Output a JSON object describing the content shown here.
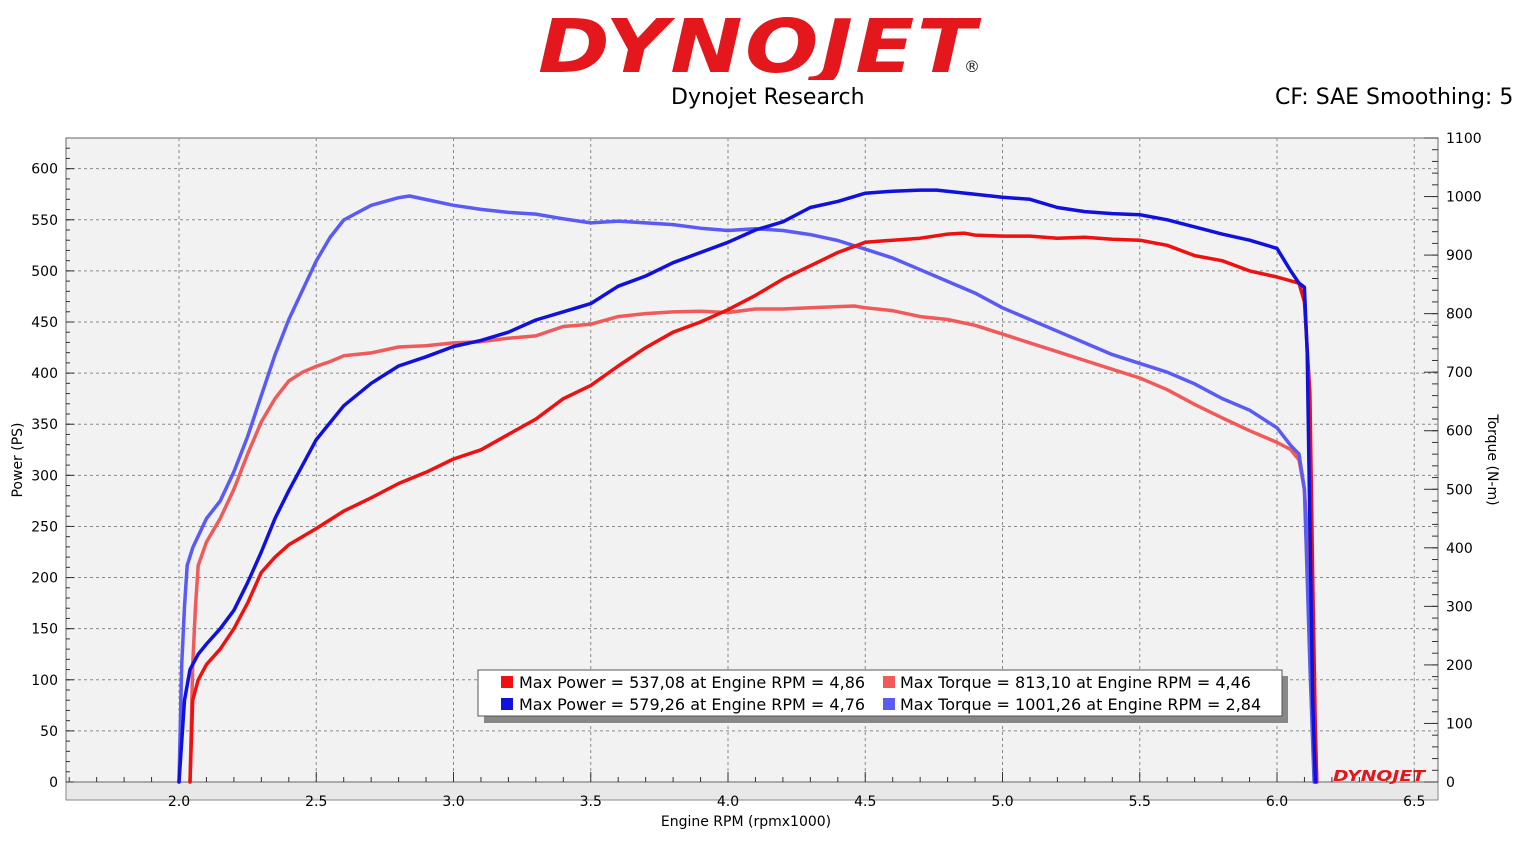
{
  "header": {
    "brand": "DYNOJET",
    "reg_mark": "®",
    "subtitle": "Dynojet Research",
    "settings": "CF: SAE Smoothing: 5"
  },
  "footer_logo": "DYNOJET",
  "colors": {
    "red": "#ee1111",
    "blue": "#1111dd",
    "light_red": "#f05a5a",
    "light_blue": "#5a5af5",
    "plot_bg": "#f0f0f0",
    "axis_bg": "#e8e8e8"
  },
  "chart_data": {
    "type": "line",
    "xlabel": "Engine RPM (rpmx1000)",
    "ylabel_left": "Power (PS)",
    "ylabel_right": "Torque (N-m)",
    "xlim": [
      1.6,
      6.6
    ],
    "ylim_left": [
      0,
      630
    ],
    "ylim_right": [
      0,
      1100
    ],
    "x_ticks": [
      "2.0",
      "2.5",
      "3.0",
      "3.5",
      "4.0",
      "4.5",
      "5.0",
      "5.5",
      "6.0",
      "6.5"
    ],
    "y_left_ticks": [
      "0",
      "50",
      "100",
      "150",
      "200",
      "250",
      "300",
      "350",
      "400",
      "450",
      "500",
      "550",
      "600"
    ],
    "y_right_ticks": [
      "0",
      "100",
      "200",
      "300",
      "400",
      "500",
      "600",
      "700",
      "800",
      "900",
      "1000",
      "1100"
    ],
    "grid": true,
    "legend": [
      {
        "text": "Max Power = 537,08 at Engine RPM = 4,86",
        "color": "#ee1111"
      },
      {
        "text": "Max Torque = 813,10 at Engine RPM = 4,46",
        "color": "#f05a5a"
      },
      {
        "text": "Max Power = 579,26 at Engine RPM = 4,76",
        "color": "#1111dd"
      },
      {
        "text": "Max Torque = 1001,26 at Engine RPM = 2,84",
        "color": "#5a5af5"
      }
    ],
    "series": [
      {
        "axis": "left",
        "color": "#ee1111",
        "width": 3.5,
        "points": [
          [
            2.04,
            0
          ],
          [
            2.05,
            80
          ],
          [
            2.07,
            100
          ],
          [
            2.1,
            115
          ],
          [
            2.15,
            130
          ],
          [
            2.2,
            150
          ],
          [
            2.25,
            175
          ],
          [
            2.3,
            205
          ],
          [
            2.35,
            220
          ],
          [
            2.4,
            232
          ],
          [
            2.5,
            248
          ],
          [
            2.6,
            265
          ],
          [
            2.7,
            278
          ],
          [
            2.8,
            292
          ],
          [
            2.9,
            303
          ],
          [
            3.0,
            316
          ],
          [
            3.1,
            325
          ],
          [
            3.2,
            340
          ],
          [
            3.3,
            355
          ],
          [
            3.4,
            375
          ],
          [
            3.5,
            388
          ],
          [
            3.6,
            407
          ],
          [
            3.7,
            425
          ],
          [
            3.8,
            440
          ],
          [
            3.9,
            450
          ],
          [
            4.0,
            462
          ],
          [
            4.1,
            476
          ],
          [
            4.2,
            492
          ],
          [
            4.3,
            505
          ],
          [
            4.4,
            518
          ],
          [
            4.5,
            528
          ],
          [
            4.6,
            530
          ],
          [
            4.7,
            532
          ],
          [
            4.8,
            536
          ],
          [
            4.86,
            537
          ],
          [
            4.9,
            535
          ],
          [
            5.0,
            534
          ],
          [
            5.1,
            534
          ],
          [
            5.2,
            532
          ],
          [
            5.3,
            533
          ],
          [
            5.4,
            531
          ],
          [
            5.5,
            530
          ],
          [
            5.6,
            525
          ],
          [
            5.7,
            515
          ],
          [
            5.8,
            510
          ],
          [
            5.9,
            500
          ],
          [
            6.0,
            494
          ],
          [
            6.08,
            488
          ],
          [
            6.1,
            470
          ],
          [
            6.12,
            380
          ],
          [
            6.13,
            200
          ],
          [
            6.14,
            50
          ],
          [
            6.145,
            0
          ]
        ]
      },
      {
        "axis": "left",
        "color": "#1111dd",
        "width": 3.5,
        "points": [
          [
            2.0,
            0
          ],
          [
            2.02,
            80
          ],
          [
            2.04,
            110
          ],
          [
            2.07,
            125
          ],
          [
            2.1,
            135
          ],
          [
            2.15,
            150
          ],
          [
            2.2,
            168
          ],
          [
            2.25,
            195
          ],
          [
            2.3,
            225
          ],
          [
            2.35,
            258
          ],
          [
            2.4,
            285
          ],
          [
            2.5,
            335
          ],
          [
            2.6,
            368
          ],
          [
            2.7,
            390
          ],
          [
            2.8,
            407
          ],
          [
            2.9,
            416
          ],
          [
            3.0,
            426
          ],
          [
            3.1,
            432
          ],
          [
            3.2,
            440
          ],
          [
            3.3,
            452
          ],
          [
            3.4,
            460
          ],
          [
            3.5,
            468
          ],
          [
            3.6,
            485
          ],
          [
            3.7,
            495
          ],
          [
            3.8,
            508
          ],
          [
            3.9,
            518
          ],
          [
            4.0,
            528
          ],
          [
            4.1,
            540
          ],
          [
            4.2,
            548
          ],
          [
            4.3,
            562
          ],
          [
            4.4,
            568
          ],
          [
            4.5,
            576
          ],
          [
            4.6,
            578
          ],
          [
            4.7,
            579
          ],
          [
            4.76,
            579
          ],
          [
            4.9,
            575
          ],
          [
            5.0,
            572
          ],
          [
            5.1,
            570
          ],
          [
            5.2,
            562
          ],
          [
            5.3,
            558
          ],
          [
            5.4,
            556
          ],
          [
            5.5,
            555
          ],
          [
            5.6,
            550
          ],
          [
            5.7,
            543
          ],
          [
            5.8,
            536
          ],
          [
            5.9,
            530
          ],
          [
            6.0,
            522
          ],
          [
            6.05,
            500
          ],
          [
            6.08,
            488
          ],
          [
            6.1,
            484
          ],
          [
            6.11,
            420
          ],
          [
            6.12,
            250
          ],
          [
            6.13,
            80
          ],
          [
            6.14,
            0
          ]
        ]
      },
      {
        "axis": "right",
        "color": "#f05a5a",
        "width": 3.5,
        "points": [
          [
            2.04,
            0
          ],
          [
            2.05,
            200
          ],
          [
            2.06,
            300
          ],
          [
            2.07,
            370
          ],
          [
            2.1,
            410
          ],
          [
            2.15,
            450
          ],
          [
            2.2,
            500
          ],
          [
            2.25,
            560
          ],
          [
            2.3,
            615
          ],
          [
            2.35,
            655
          ],
          [
            2.4,
            685
          ],
          [
            2.45,
            700
          ],
          [
            2.5,
            710
          ],
          [
            2.55,
            718
          ],
          [
            2.6,
            728
          ],
          [
            2.7,
            733
          ],
          [
            2.8,
            743
          ],
          [
            2.9,
            745
          ],
          [
            3.0,
            750
          ],
          [
            3.1,
            752
          ],
          [
            3.2,
            758
          ],
          [
            3.3,
            762
          ],
          [
            3.4,
            778
          ],
          [
            3.5,
            782
          ],
          [
            3.6,
            795
          ],
          [
            3.7,
            800
          ],
          [
            3.8,
            803
          ],
          [
            3.9,
            804
          ],
          [
            4.0,
            802
          ],
          [
            4.1,
            808
          ],
          [
            4.2,
            808
          ],
          [
            4.3,
            810
          ],
          [
            4.4,
            812
          ],
          [
            4.46,
            813
          ],
          [
            4.5,
            810
          ],
          [
            4.6,
            805
          ],
          [
            4.7,
            795
          ],
          [
            4.8,
            790
          ],
          [
            4.9,
            780
          ],
          [
            5.0,
            765
          ],
          [
            5.1,
            750
          ],
          [
            5.2,
            735
          ],
          [
            5.3,
            720
          ],
          [
            5.4,
            705
          ],
          [
            5.5,
            690
          ],
          [
            5.6,
            670
          ],
          [
            5.7,
            645
          ],
          [
            5.8,
            622
          ],
          [
            5.9,
            600
          ],
          [
            6.0,
            580
          ],
          [
            6.05,
            568
          ],
          [
            6.08,
            550
          ],
          [
            6.1,
            500
          ],
          [
            6.12,
            350
          ],
          [
            6.13,
            200
          ],
          [
            6.145,
            0
          ]
        ]
      },
      {
        "axis": "right",
        "color": "#5a5af5",
        "width": 3.5,
        "points": [
          [
            2.0,
            0
          ],
          [
            2.01,
            200
          ],
          [
            2.02,
            300
          ],
          [
            2.03,
            370
          ],
          [
            2.05,
            400
          ],
          [
            2.1,
            450
          ],
          [
            2.15,
            480
          ],
          [
            2.2,
            530
          ],
          [
            2.25,
            590
          ],
          [
            2.3,
            660
          ],
          [
            2.35,
            730
          ],
          [
            2.4,
            790
          ],
          [
            2.45,
            840
          ],
          [
            2.5,
            890
          ],
          [
            2.55,
            930
          ],
          [
            2.6,
            960
          ],
          [
            2.7,
            985
          ],
          [
            2.8,
            998
          ],
          [
            2.84,
            1001
          ],
          [
            2.9,
            995
          ],
          [
            3.0,
            985
          ],
          [
            3.1,
            978
          ],
          [
            3.2,
            973
          ],
          [
            3.3,
            970
          ],
          [
            3.4,
            962
          ],
          [
            3.5,
            955
          ],
          [
            3.6,
            958
          ],
          [
            3.7,
            955
          ],
          [
            3.8,
            952
          ],
          [
            3.9,
            946
          ],
          [
            4.0,
            942
          ],
          [
            4.1,
            945
          ],
          [
            4.2,
            942
          ],
          [
            4.3,
            935
          ],
          [
            4.4,
            925
          ],
          [
            4.5,
            910
          ],
          [
            4.6,
            895
          ],
          [
            4.7,
            875
          ],
          [
            4.8,
            855
          ],
          [
            4.9,
            835
          ],
          [
            5.0,
            810
          ],
          [
            5.1,
            790
          ],
          [
            5.2,
            770
          ],
          [
            5.3,
            750
          ],
          [
            5.4,
            730
          ],
          [
            5.5,
            715
          ],
          [
            5.6,
            700
          ],
          [
            5.7,
            680
          ],
          [
            5.8,
            655
          ],
          [
            5.9,
            635
          ],
          [
            6.0,
            605
          ],
          [
            6.05,
            575
          ],
          [
            6.08,
            560
          ],
          [
            6.1,
            500
          ],
          [
            6.11,
            350
          ],
          [
            6.12,
            200
          ],
          [
            6.135,
            0
          ]
        ]
      }
    ]
  }
}
